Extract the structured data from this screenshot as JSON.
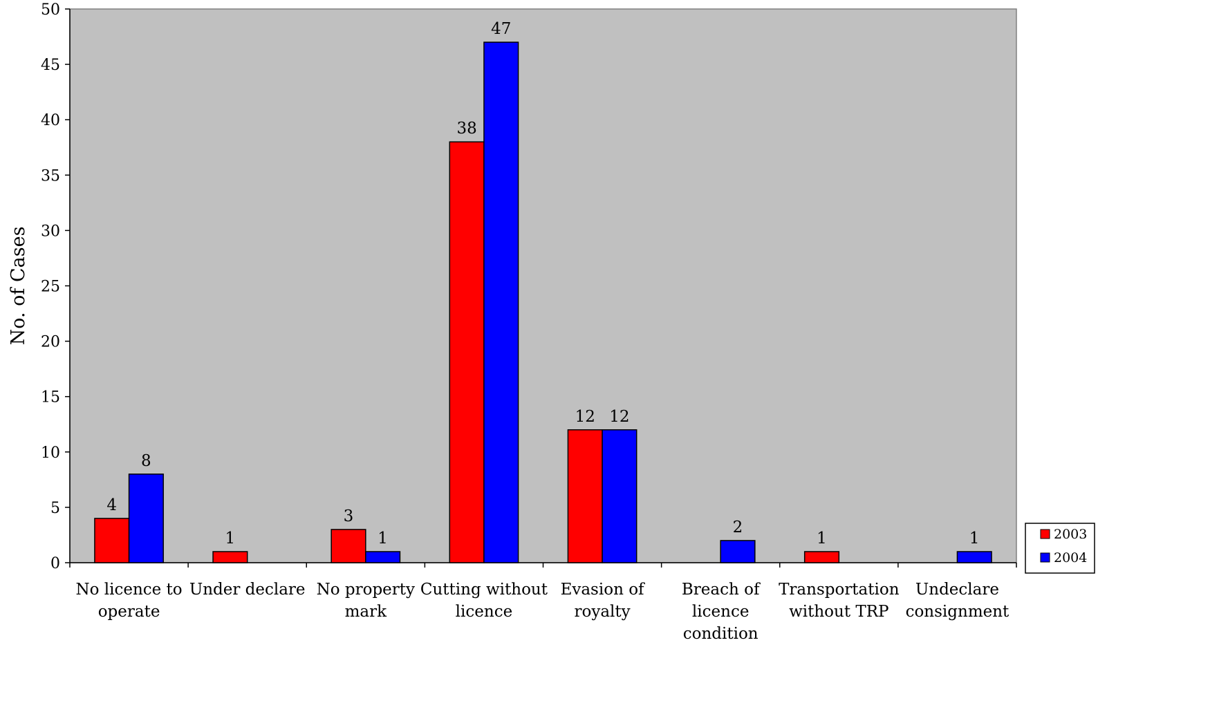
{
  "chart_data": {
    "type": "bar",
    "title": "",
    "xlabel": "",
    "ylabel": "No. of Cases",
    "ylim": [
      0,
      50
    ],
    "yticks": [
      0,
      5,
      10,
      15,
      20,
      25,
      30,
      35,
      40,
      45,
      50
    ],
    "grid": false,
    "legend_position": "right",
    "plot_background": "#C0C0C0",
    "categories": [
      [
        "No licence to",
        "operate"
      ],
      [
        "Under declare"
      ],
      [
        "No property",
        "mark"
      ],
      [
        "Cutting without",
        "licence"
      ],
      [
        "Evasion of",
        "royalty"
      ],
      [
        "Breach of",
        "licence",
        "condition"
      ],
      [
        "Transportation",
        "without TRP"
      ],
      [
        "Undeclare",
        "consignment"
      ]
    ],
    "series": [
      {
        "name": "2003",
        "color": "#FF0000",
        "values": [
          4,
          1,
          3,
          38,
          12,
          null,
          1,
          null
        ]
      },
      {
        "name": "2004",
        "color": "#0000FF",
        "values": [
          8,
          null,
          1,
          47,
          12,
          2,
          null,
          1
        ]
      }
    ]
  }
}
